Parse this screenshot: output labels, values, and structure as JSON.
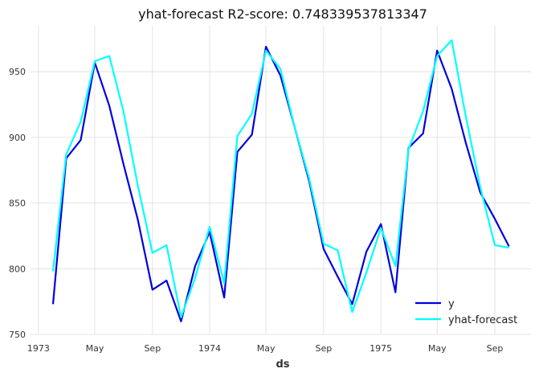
{
  "chart_data": {
    "type": "line",
    "title": "yhat-forecast R2-score: 0.748339537813347",
    "xlabel": "ds",
    "ylabel": "",
    "x": [
      "1973-02",
      "1973-03",
      "1973-04",
      "1973-05",
      "1973-06",
      "1973-07",
      "1973-08",
      "1973-09",
      "1973-10",
      "1973-11",
      "1973-12",
      "1974-01",
      "1974-02",
      "1974-03",
      "1974-04",
      "1974-05",
      "1974-06",
      "1974-07",
      "1974-08",
      "1974-09",
      "1974-10",
      "1974-11",
      "1974-12",
      "1975-01",
      "1975-02",
      "1975-03",
      "1975-04",
      "1975-05",
      "1975-06",
      "1975-07",
      "1975-08",
      "1975-09",
      "1975-10"
    ],
    "series": [
      {
        "name": "y",
        "color": "#0000dd",
        "values": [
          773,
          884,
          898,
          957,
          924,
          880,
          837,
          784,
          791,
          760,
          802,
          828,
          778,
          889,
          902,
          969,
          947,
          908,
          867,
          815,
          794,
          773,
          813,
          834,
          782,
          892,
          903,
          966,
          937,
          896,
          858,
          838,
          817
        ]
      },
      {
        "name": "yhat-forecast",
        "color": "#00ffff",
        "values": [
          798,
          887,
          912,
          958,
          962,
          920,
          863,
          812,
          818,
          763,
          793,
          832,
          789,
          901,
          918,
          966,
          952,
          908,
          869,
          819,
          814,
          767,
          797,
          831,
          802,
          891,
          920,
          962,
          974,
          916,
          862,
          818,
          816
        ]
      }
    ],
    "xticks": [
      {
        "date": "1973-01",
        "label": "1973"
      },
      {
        "date": "1973-05",
        "label": "May"
      },
      {
        "date": "1973-09",
        "label": "Sep"
      },
      {
        "date": "1974-01",
        "label": "1974"
      },
      {
        "date": "1974-05",
        "label": "May"
      },
      {
        "date": "1974-09",
        "label": "Sep"
      },
      {
        "date": "1975-01",
        "label": "1975"
      },
      {
        "date": "1975-05",
        "label": "May"
      },
      {
        "date": "1975-09",
        "label": "Sep"
      }
    ],
    "yticks": [
      750,
      800,
      850,
      900,
      950
    ],
    "xlim": [
      "1972-12-15",
      "1975-11-17"
    ],
    "ylim": [
      750,
      985
    ],
    "grid": true,
    "legend": "bottom-right"
  }
}
